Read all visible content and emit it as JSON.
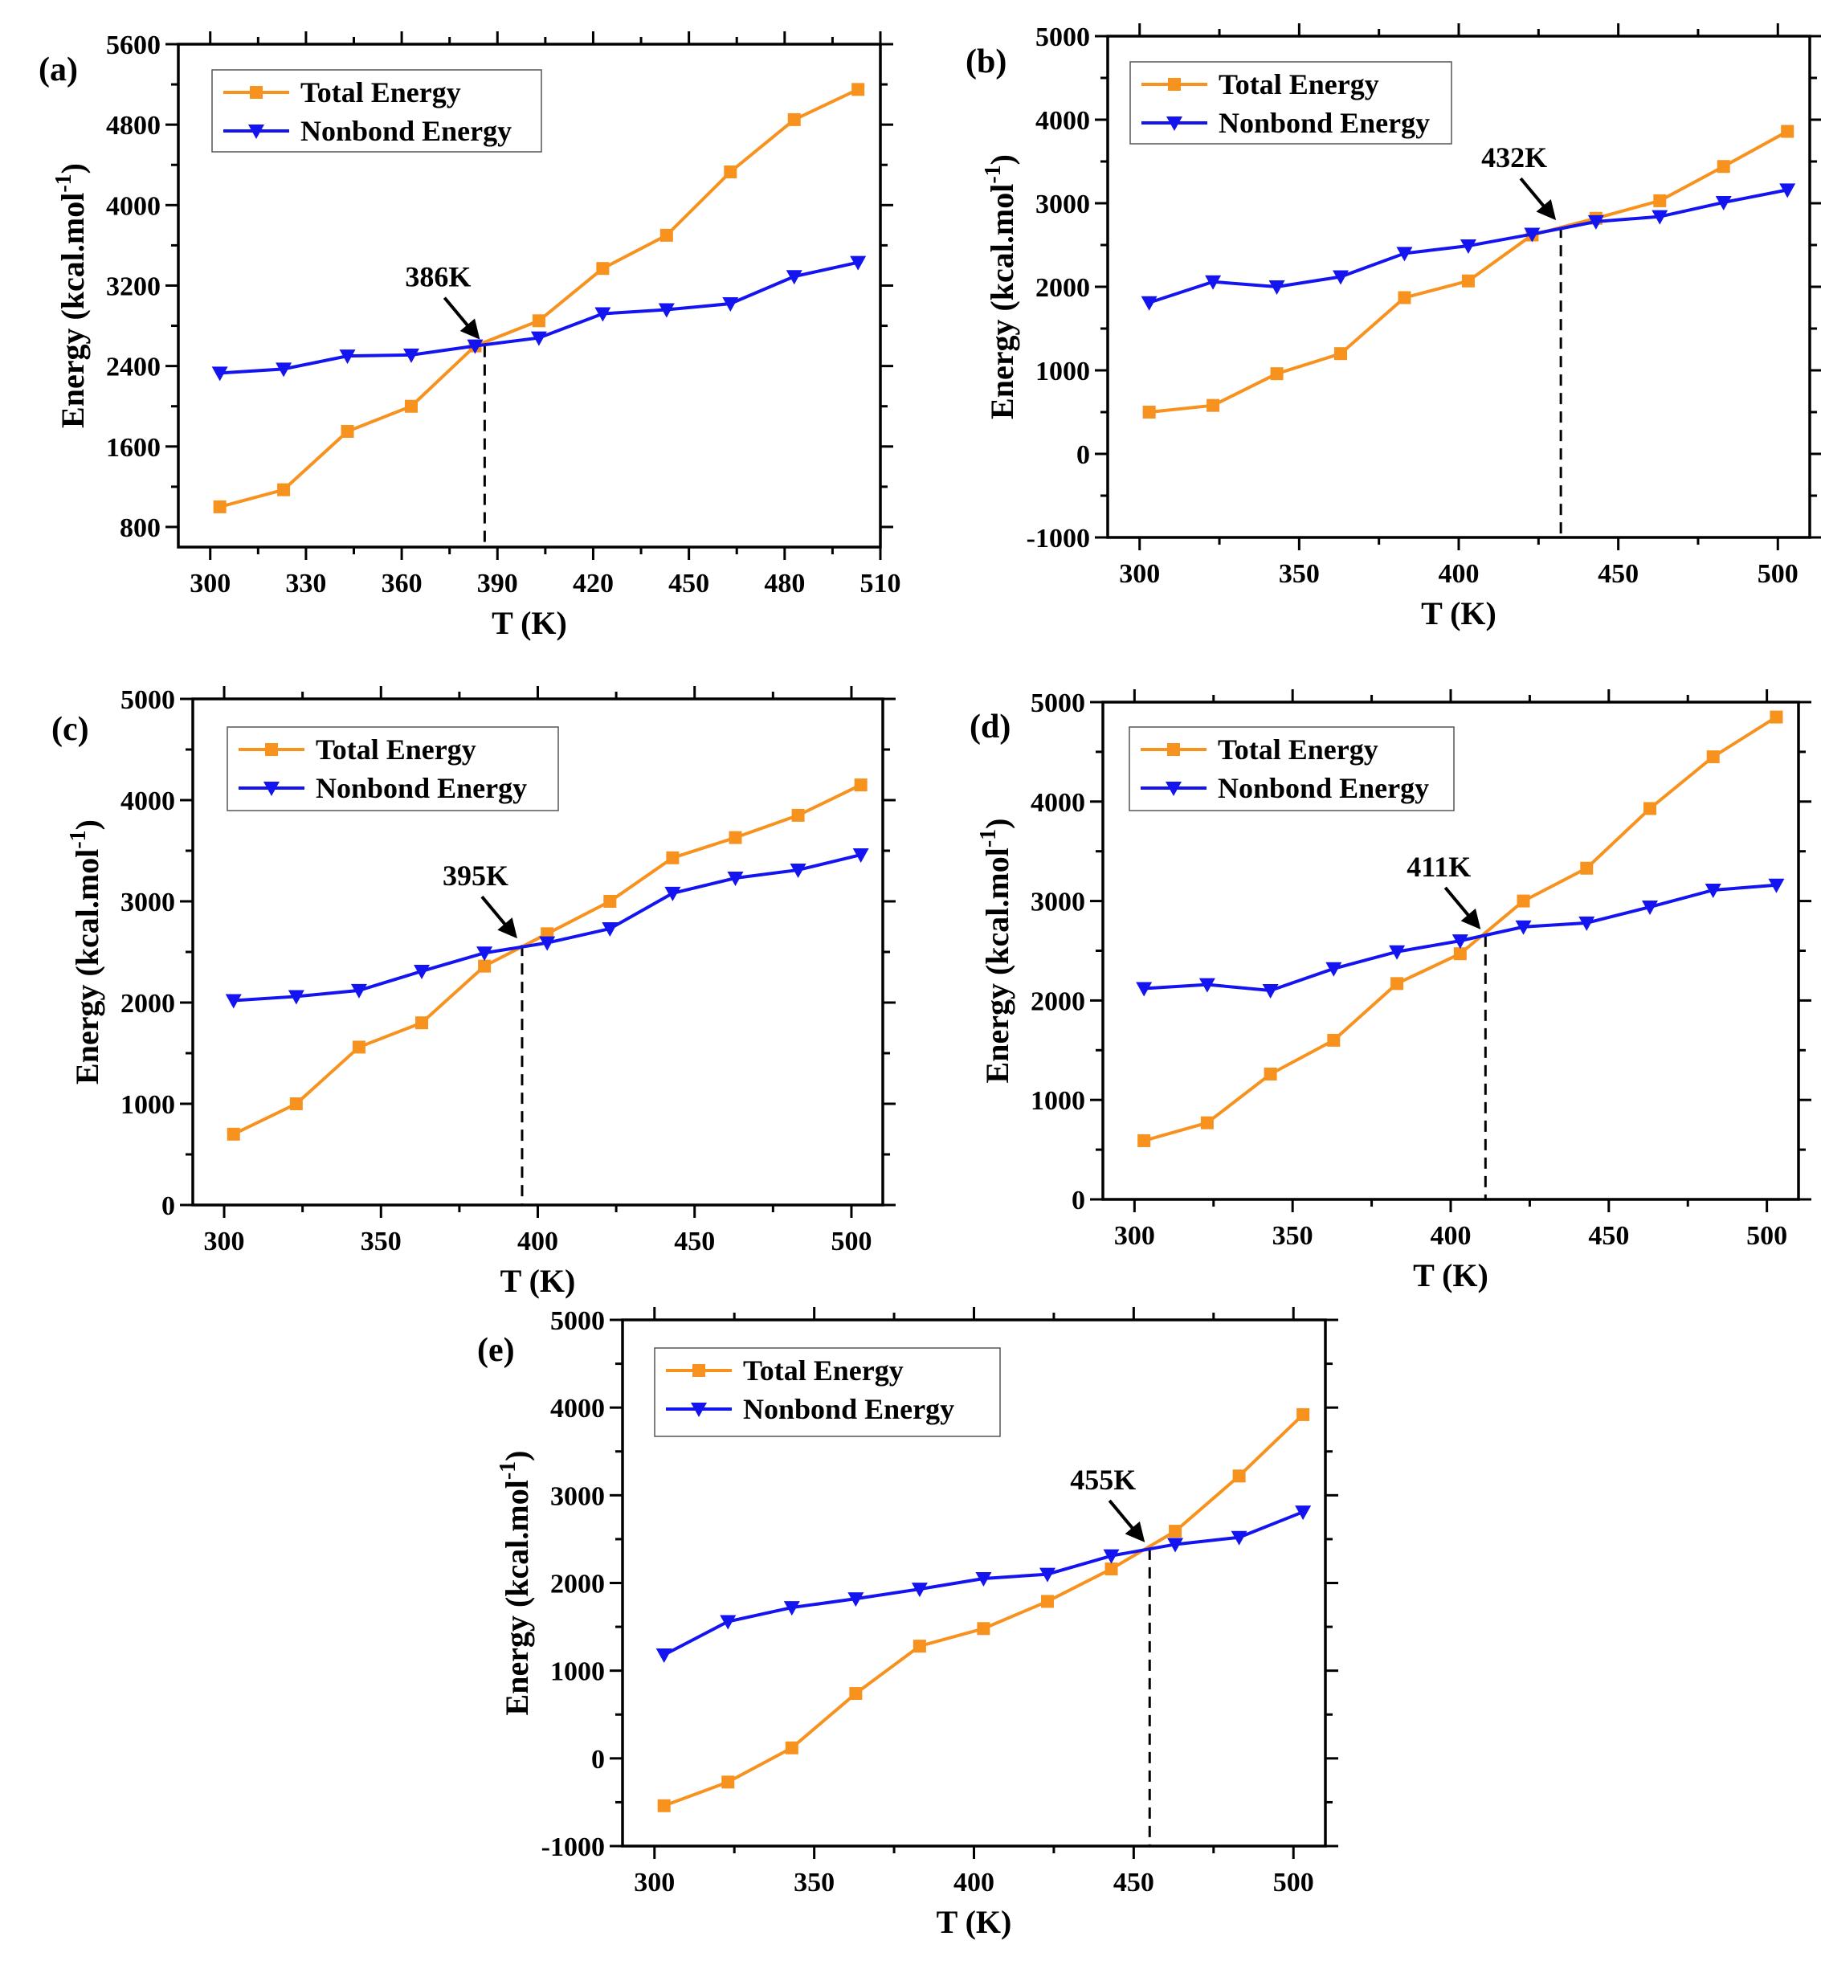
{
  "chart_data": [
    {
      "type": "line",
      "panel_label": "(a)",
      "xlabel": "T (K)",
      "ylabel": "Energy (kcal.mol",
      "ylabel_sup": "-1",
      "ylabel_end": ")",
      "xlim": [
        290,
        510
      ],
      "ylim": [
        600,
        5600
      ],
      "xticks": [
        300,
        330,
        360,
        390,
        420,
        450,
        480,
        510
      ],
      "yticks": [
        800,
        1600,
        2400,
        3200,
        4000,
        4800,
        5600
      ],
      "x": [
        303,
        323,
        343,
        363,
        383,
        403,
        423,
        443,
        463,
        483,
        503
      ],
      "series": [
        {
          "name": "Total Energy",
          "color": "#F7921E",
          "marker": "square",
          "values": [
            1000,
            1170,
            1750,
            2000,
            2600,
            2850,
            3370,
            3700,
            4330,
            4850,
            5150
          ]
        },
        {
          "name": "Nonbond Energy",
          "color": "#1414F0",
          "marker": "triangle-down",
          "values": [
            2330,
            2370,
            2500,
            2510,
            2600,
            2680,
            2920,
            2960,
            3020,
            3290,
            3430
          ]
        }
      ],
      "transition": {
        "x": 386,
        "y": 2600,
        "label": "386K"
      },
      "legend": "top-left"
    },
    {
      "type": "line",
      "panel_label": "(b)",
      "xlabel": "T (K)",
      "ylabel": "Energy (kcal.mol",
      "ylabel_sup": "-1",
      "ylabel_end": ")",
      "xlim": [
        290,
        510
      ],
      "ylim": [
        -1000,
        5000
      ],
      "xticks": [
        300,
        350,
        400,
        450,
        500
      ],
      "yticks": [
        -1000,
        0,
        1000,
        2000,
        3000,
        4000,
        5000
      ],
      "x": [
        303,
        323,
        343,
        363,
        383,
        403,
        423,
        443,
        463,
        483,
        503
      ],
      "series": [
        {
          "name": "Total Energy",
          "color": "#F7921E",
          "marker": "square",
          "values": [
            500,
            580,
            960,
            1200,
            1870,
            2070,
            2620,
            2820,
            3030,
            3440,
            3860
          ]
        },
        {
          "name": "Nonbond Energy",
          "color": "#1414F0",
          "marker": "triangle-down",
          "values": [
            1810,
            2060,
            2000,
            2120,
            2400,
            2490,
            2630,
            2780,
            2840,
            3010,
            3160
          ]
        }
      ],
      "transition": {
        "x": 432,
        "y": 2720,
        "label": "432K"
      },
      "legend": "top-left"
    },
    {
      "type": "line",
      "panel_label": "(c)",
      "xlabel": "T (K)",
      "ylabel": "Energy (kcal.mol",
      "ylabel_sup": "-1",
      "ylabel_end": ")",
      "xlim": [
        290,
        510
      ],
      "ylim": [
        0,
        5000
      ],
      "xticks": [
        300,
        350,
        400,
        450,
        500
      ],
      "yticks": [
        0,
        1000,
        2000,
        3000,
        4000,
        5000
      ],
      "x": [
        303,
        323,
        343,
        363,
        383,
        403,
        423,
        443,
        463,
        483,
        503
      ],
      "series": [
        {
          "name": "Total Energy",
          "color": "#F7921E",
          "marker": "square",
          "values": [
            700,
            1000,
            1560,
            1800,
            2360,
            2680,
            3000,
            3430,
            3630,
            3850,
            4150
          ]
        },
        {
          "name": "Nonbond Energy",
          "color": "#1414F0",
          "marker": "triangle-down",
          "values": [
            2020,
            2060,
            2120,
            2310,
            2490,
            2590,
            2730,
            3080,
            3230,
            3310,
            3460
          ]
        }
      ],
      "transition": {
        "x": 395,
        "y": 2570,
        "label": "395K"
      },
      "legend": "top-left"
    },
    {
      "type": "line",
      "panel_label": "(d)",
      "xlabel": "T (K)",
      "ylabel": "Energy (kcal.mol",
      "ylabel_sup": "-1",
      "ylabel_end": ")",
      "xlim": [
        290,
        510
      ],
      "ylim": [
        0,
        5000
      ],
      "xticks": [
        300,
        350,
        400,
        450,
        500
      ],
      "yticks": [
        0,
        1000,
        2000,
        3000,
        4000,
        5000
      ],
      "x": [
        303,
        323,
        343,
        363,
        383,
        403,
        423,
        443,
        463,
        483,
        503
      ],
      "series": [
        {
          "name": "Total Energy",
          "color": "#F7921E",
          "marker": "square",
          "values": [
            590,
            770,
            1260,
            1600,
            2170,
            2470,
            3000,
            3330,
            3930,
            4450,
            4850
          ]
        },
        {
          "name": "Nonbond Energy",
          "color": "#1414F0",
          "marker": "triangle-down",
          "values": [
            2120,
            2160,
            2100,
            2320,
            2490,
            2600,
            2740,
            2780,
            2940,
            3110,
            3160
          ]
        }
      ],
      "transition": {
        "x": 411,
        "y": 2650,
        "label": "411K"
      },
      "legend": "top-left"
    },
    {
      "type": "line",
      "panel_label": "(e)",
      "xlabel": "T (K)",
      "ylabel": "Energy (kcal.mol",
      "ylabel_sup": "-1",
      "ylabel_end": ")",
      "xlim": [
        290,
        510
      ],
      "ylim": [
        -1000,
        5000
      ],
      "xticks": [
        300,
        350,
        400,
        450,
        500
      ],
      "yticks": [
        -1000,
        0,
        1000,
        2000,
        3000,
        4000,
        5000
      ],
      "x": [
        303,
        323,
        343,
        363,
        383,
        403,
        423,
        443,
        463,
        483,
        503
      ],
      "series": [
        {
          "name": "Total Energy",
          "color": "#F7921E",
          "marker": "square",
          "values": [
            -540,
            -270,
            120,
            740,
            1280,
            1480,
            1790,
            2160,
            2590,
            3220,
            3920
          ]
        },
        {
          "name": "Nonbond Energy",
          "color": "#1414F0",
          "marker": "triangle-down",
          "values": [
            1180,
            1560,
            1720,
            1820,
            1930,
            2050,
            2100,
            2310,
            2440,
            2520,
            2810
          ]
        }
      ],
      "transition": {
        "x": 455,
        "y": 2390,
        "label": "455K"
      },
      "legend": "top-left"
    }
  ]
}
